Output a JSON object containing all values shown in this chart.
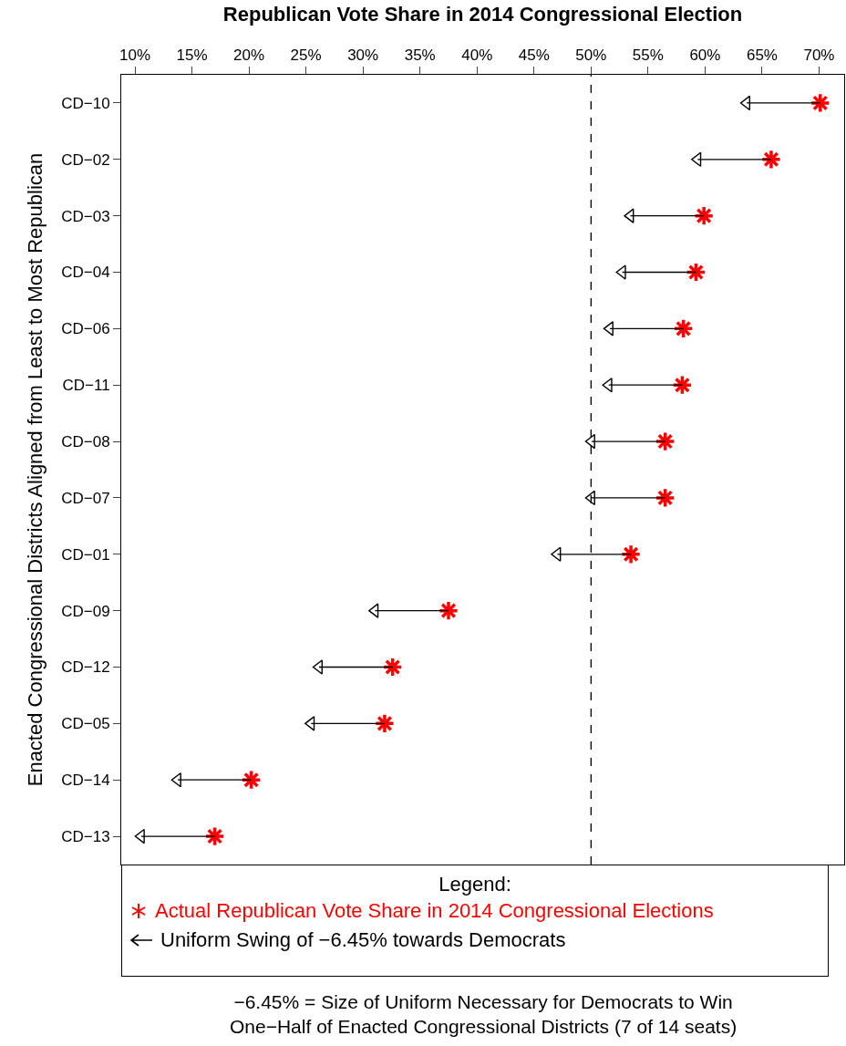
{
  "chart_data": {
    "type": "scatter",
    "orientation": "horizontal",
    "title": "Republican Vote Share in 2014 Congressional Election",
    "ylabel": "Enacted Congressional Districts Aligned from Least to Most Republican",
    "legend_title": "Legend:",
    "categories": [
      "CD−10",
      "CD−02",
      "CD−03",
      "CD−04",
      "CD−06",
      "CD−11",
      "CD−08",
      "CD−07",
      "CD−01",
      "CD−09",
      "CD−12",
      "CD−05",
      "CD−14",
      "CD−13"
    ],
    "series": [
      {
        "name": "Actual Republican Vote Share in 2014 Congressional Elections",
        "color": "#ff0000",
        "marker": "cross",
        "values": [
          70.1,
          65.8,
          59.9,
          59.2,
          58.1,
          58.0,
          56.5,
          56.5,
          53.5,
          37.5,
          32.6,
          31.9,
          20.2,
          17.0
        ]
      },
      {
        "name": "Uniform Swing of −6.45% towards Democrats",
        "color": "#000000",
        "marker": "triangle",
        "values": [
          63.65,
          59.35,
          53.45,
          52.75,
          51.65,
          51.55,
          50.05,
          50.05,
          47.05,
          31.05,
          26.15,
          25.45,
          13.75,
          10.55
        ]
      }
    ],
    "xlim": [
      8.8,
      72.2
    ],
    "xticks": [
      {
        "value": 10,
        "label": "10%"
      },
      {
        "value": 15,
        "label": "15%"
      },
      {
        "value": 20,
        "label": "20%"
      },
      {
        "value": 25,
        "label": "25%"
      },
      {
        "value": 30,
        "label": "30%"
      },
      {
        "value": 35,
        "label": "35%"
      },
      {
        "value": 40,
        "label": "40%"
      },
      {
        "value": 45,
        "label": "45%"
      },
      {
        "value": 50,
        "label": "50%"
      },
      {
        "value": 55,
        "label": "55%"
      },
      {
        "value": 60,
        "label": "60%"
      },
      {
        "value": 65,
        "label": "65%"
      },
      {
        "value": 70,
        "label": "70%"
      }
    ],
    "ref_lines": [
      {
        "axis": "x",
        "value": 50,
        "color": "#000000",
        "line_style": "dashed"
      }
    ],
    "legend": "bottom",
    "grid": false,
    "annotations": [
      "−6.45% = Size of Uniform Necessary for Democrats to Win\nOne−Half of Enacted Congressional Districts (7 of 14 seats)"
    ]
  }
}
